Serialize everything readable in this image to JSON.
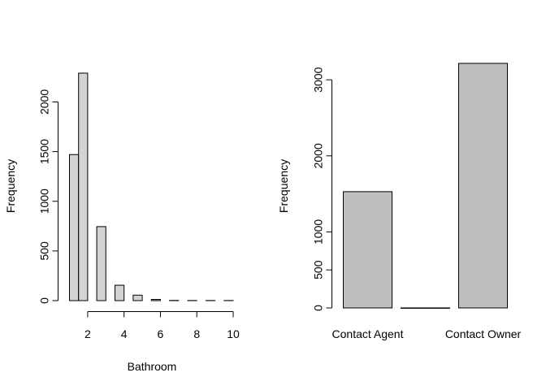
{
  "chart_data": [
    {
      "type": "bar",
      "subtype": "histogram",
      "title": "",
      "xlabel": "Bathroom",
      "ylabel": "Frequency",
      "bins": [
        {
          "x0": 1,
          "x1": 1.5,
          "value": 1470
        },
        {
          "x0": 1.5,
          "x1": 2,
          "value": 2290
        },
        {
          "x0": 2.5,
          "x1": 3,
          "value": 745
        },
        {
          "x0": 3.5,
          "x1": 4,
          "value": 155
        },
        {
          "x0": 4.5,
          "x1": 5,
          "value": 55
        },
        {
          "x0": 5.5,
          "x1": 6,
          "value": 12
        },
        {
          "x0": 6.5,
          "x1": 7,
          "value": 2
        },
        {
          "x0": 7.5,
          "x1": 8,
          "value": 1
        },
        {
          "x0": 8.5,
          "x1": 9,
          "value": 1
        },
        {
          "x0": 9.5,
          "x1": 10,
          "value": 1
        }
      ],
      "xticks": [
        "2",
        "4",
        "6",
        "8",
        "10"
      ],
      "yticks": [
        "0",
        "500",
        "1000",
        "1500",
        "2000"
      ],
      "xlim": [
        1,
        10
      ],
      "ylim": [
        0,
        2290
      ],
      "grid": false
    },
    {
      "type": "bar",
      "title": "",
      "xlabel": "",
      "ylabel": "Frequency",
      "categories": [
        "Contact Agent",
        "",
        "Contact Owner"
      ],
      "category_labels": [
        "Contact Agent",
        "Contact Owner"
      ],
      "values": [
        1529,
        1,
        3216
      ],
      "yticks": [
        "0",
        "500",
        "1000",
        "2000",
        "3000"
      ],
      "ylim": [
        0,
        3216
      ],
      "grid": false
    }
  ]
}
